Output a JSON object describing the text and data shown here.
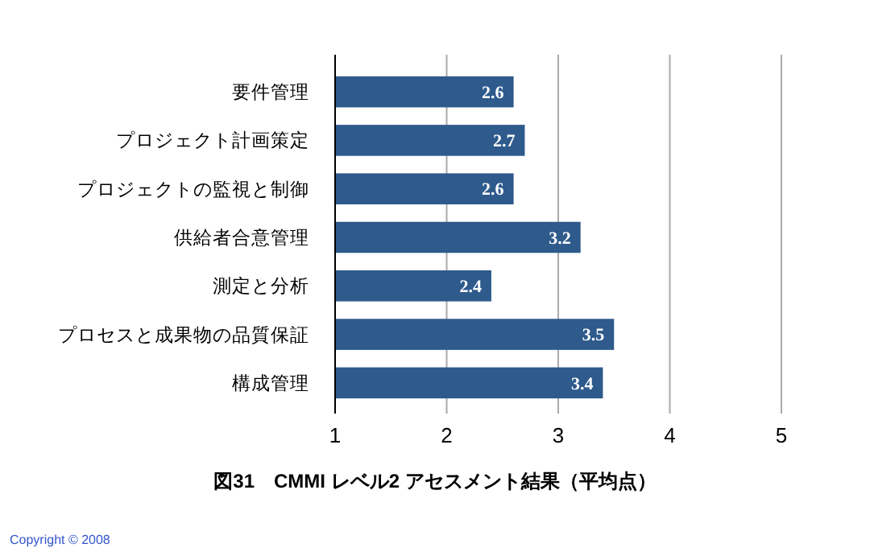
{
  "chart_data": {
    "type": "bar",
    "orientation": "horizontal",
    "title": "図31　CMMI レベル2 アセスメント結果（平均点）",
    "categories": [
      "要件管理",
      "プロジェクト計画策定",
      "プロジェクトの監視と制御",
      "供給者合意管理",
      "測定と分析",
      "プロセスと成果物の品質保証",
      "構成管理"
    ],
    "values": [
      2.6,
      2.7,
      2.6,
      3.2,
      2.4,
      3.5,
      3.4
    ],
    "color": "#2e5a8c",
    "data_labels": true,
    "xlim": [
      1,
      5
    ],
    "xticks": [
      1,
      2,
      3,
      4,
      5
    ],
    "grid": "x",
    "annotations": [
      "Copyright © 2008"
    ]
  }
}
